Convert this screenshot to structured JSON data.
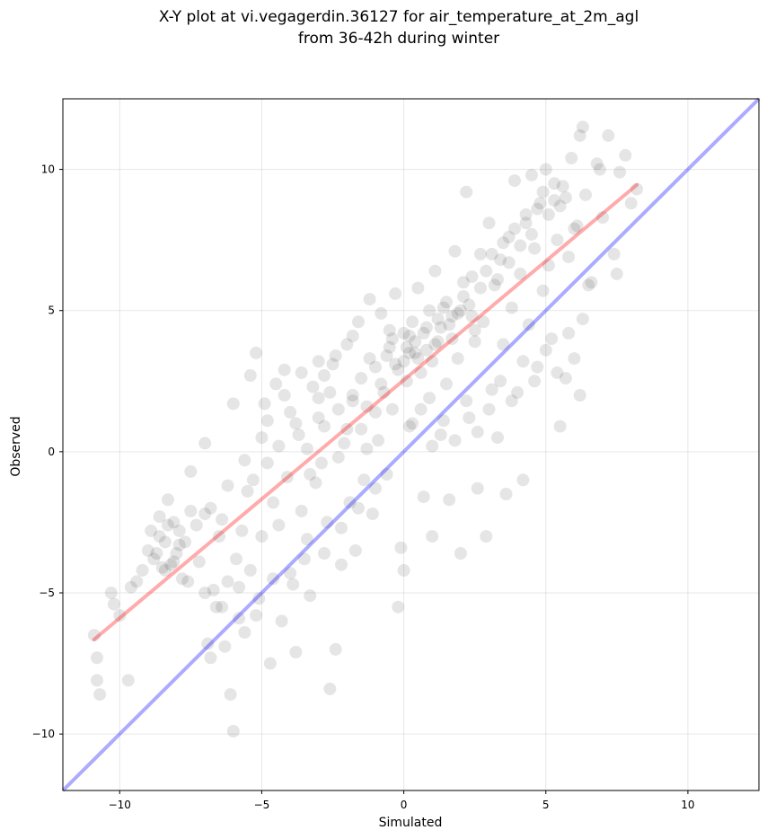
{
  "chart_data": {
    "type": "scatter",
    "title_line1": "X-Y plot at vi.vegagerdin.36127 for air_temperature_at_2m_agl",
    "title_line2": "from 36-42h during winter",
    "xlabel": "Simulated",
    "ylabel": "Observed",
    "xlim": [
      -12,
      12.5
    ],
    "ylim": [
      -12,
      12.5
    ],
    "xticks": [
      -10,
      -5,
      0,
      5,
      10
    ],
    "yticks": [
      -10,
      -5,
      0,
      5,
      10
    ],
    "xtick_labels": [
      "−10",
      "−5",
      "0",
      "5",
      "10"
    ],
    "ytick_labels": [
      "−10",
      "−5",
      "0",
      "5",
      "10"
    ],
    "grid": true,
    "point_color": "#000000",
    "point_opacity": 0.1,
    "identity_line": {
      "color": "#0000ff",
      "opacity": 0.33,
      "x": [
        -12,
        12.5
      ],
      "y": [
        -12,
        12.5
      ]
    },
    "fit_line": {
      "color": "#ff0000",
      "opacity": 0.33,
      "x": [
        -10.9,
        8.2
      ],
      "y": [
        -6.65,
        9.45
      ]
    },
    "points": [
      [
        -10.9,
        -6.5
      ],
      [
        -10.8,
        -7.3
      ],
      [
        -10.8,
        -8.1
      ],
      [
        -10.7,
        -8.6
      ],
      [
        -10.3,
        -5.0
      ],
      [
        -10.2,
        -5.4
      ],
      [
        -10.0,
        -5.8
      ],
      [
        -9.7,
        -8.1
      ],
      [
        -9.6,
        -4.8
      ],
      [
        -9.4,
        -4.6
      ],
      [
        -9.2,
        -4.2
      ],
      [
        -9.0,
        -3.5
      ],
      [
        -8.9,
        -2.8
      ],
      [
        -8.8,
        -3.8
      ],
      [
        -8.6,
        -2.3
      ],
      [
        -8.5,
        -4.1
      ],
      [
        -8.4,
        -3.2
      ],
      [
        -8.2,
        -4.0
      ],
      [
        -8.1,
        -2.5
      ],
      [
        -8.0,
        -3.6
      ],
      [
        -7.9,
        -2.8
      ],
      [
        -7.8,
        -4.5
      ],
      [
        -7.7,
        -3.2
      ],
      [
        -7.5,
        -2.1
      ],
      [
        -7.3,
        -2.6
      ],
      [
        -7.2,
        -3.9
      ],
      [
        -7.0,
        -2.2
      ],
      [
        -6.9,
        -6.8
      ],
      [
        -6.8,
        -7.3
      ],
      [
        -6.7,
        -4.9
      ],
      [
        -6.6,
        -5.5
      ],
      [
        -6.5,
        -3.0
      ],
      [
        -6.4,
        -2.4
      ],
      [
        -6.3,
        -6.9
      ],
      [
        -6.2,
        -4.6
      ],
      [
        -6.1,
        -8.6
      ],
      [
        -6.0,
        -9.9
      ],
      [
        -5.9,
        -3.8
      ],
      [
        -5.8,
        -5.9
      ],
      [
        -5.7,
        -2.8
      ],
      [
        -5.6,
        -6.4
      ],
      [
        -5.5,
        -1.4
      ],
      [
        -5.4,
        -4.2
      ],
      [
        -5.3,
        -1.0
      ],
      [
        -5.2,
        3.5
      ],
      [
        -5.1,
        -5.2
      ],
      [
        -5.0,
        -3.0
      ],
      [
        -4.9,
        1.7
      ],
      [
        -4.8,
        -0.4
      ],
      [
        -4.7,
        -7.5
      ],
      [
        -4.6,
        -1.8
      ],
      [
        -4.5,
        2.4
      ],
      [
        -4.4,
        -2.6
      ],
      [
        -4.3,
        -6.0
      ],
      [
        -4.2,
        2.9
      ],
      [
        -4.1,
        -0.9
      ],
      [
        -4.0,
        1.4
      ],
      [
        -3.9,
        -4.7
      ],
      [
        -3.8,
        -7.1
      ],
      [
        -3.7,
        0.6
      ],
      [
        -3.6,
        -2.1
      ],
      [
        -3.5,
        -3.8
      ],
      [
        -3.4,
        0.1
      ],
      [
        -3.3,
        -5.1
      ],
      [
        -3.2,
        2.3
      ],
      [
        -3.1,
        -1.1
      ],
      [
        -3.0,
        1.2
      ],
      [
        -2.9,
        -0.4
      ],
      [
        -2.8,
        2.7
      ],
      [
        -2.7,
        -2.5
      ],
      [
        -2.6,
        -8.4
      ],
      [
        -2.5,
        3.1
      ],
      [
        -2.4,
        -7.0
      ],
      [
        -2.3,
        1.5
      ],
      [
        -2.2,
        -4.0
      ],
      [
        -2.1,
        0.3
      ],
      [
        -2.0,
        3.8
      ],
      [
        -1.9,
        -1.8
      ],
      [
        -1.8,
        2.0
      ],
      [
        -1.7,
        -3.5
      ],
      [
        -1.6,
        4.6
      ],
      [
        -1.5,
        0.8
      ],
      [
        -1.4,
        -1.0
      ],
      [
        -1.3,
        1.6
      ],
      [
        -1.2,
        5.4
      ],
      [
        -1.1,
        -2.2
      ],
      [
        -1.0,
        3.0
      ],
      [
        -0.9,
        0.4
      ],
      [
        -0.8,
        4.9
      ],
      [
        -0.7,
        2.1
      ],
      [
        -0.6,
        -0.8
      ],
      [
        -0.5,
        3.7
      ],
      [
        -0.4,
        1.5
      ],
      [
        -0.3,
        5.6
      ],
      [
        -0.2,
        -5.5
      ],
      [
        -0.1,
        -3.4
      ],
      [
        0.0,
        3.2
      ],
      [
        0.0,
        -4.2
      ],
      [
        0.1,
        2.5
      ],
      [
        0.2,
        4.1
      ],
      [
        0.3,
        1.0
      ],
      [
        0.4,
        3.5
      ],
      [
        0.5,
        5.8
      ],
      [
        0.6,
        2.8
      ],
      [
        0.7,
        -1.6
      ],
      [
        0.8,
        4.4
      ],
      [
        0.9,
        1.9
      ],
      [
        1.0,
        -3.0
      ],
      [
        1.1,
        6.4
      ],
      [
        1.2,
        3.9
      ],
      [
        1.3,
        0.6
      ],
      [
        1.4,
        5.1
      ],
      [
        1.5,
        2.4
      ],
      [
        1.6,
        -1.7
      ],
      [
        1.7,
        4.8
      ],
      [
        1.8,
        7.1
      ],
      [
        1.9,
        3.3
      ],
      [
        2.0,
        -3.6
      ],
      [
        2.1,
        5.5
      ],
      [
        2.2,
        9.2
      ],
      [
        2.3,
        1.2
      ],
      [
        2.4,
        6.2
      ],
      [
        2.5,
        3.9
      ],
      [
        2.6,
        -1.3
      ],
      [
        2.7,
        7.0
      ],
      [
        2.8,
        4.6
      ],
      [
        2.9,
        -3.0
      ],
      [
        3.0,
        8.1
      ],
      [
        3.1,
        2.2
      ],
      [
        3.2,
        5.9
      ],
      [
        3.3,
        0.5
      ],
      [
        3.4,
        6.8
      ],
      [
        3.5,
        3.8
      ],
      [
        3.6,
        -1.5
      ],
      [
        3.7,
        7.6
      ],
      [
        3.8,
        5.1
      ],
      [
        3.9,
        9.6
      ],
      [
        4.0,
        2.1
      ],
      [
        4.1,
        6.3
      ],
      [
        4.2,
        -1.0
      ],
      [
        4.3,
        8.4
      ],
      [
        4.4,
        4.5
      ],
      [
        4.5,
        9.8
      ],
      [
        4.6,
        7.2
      ],
      [
        4.7,
        3.0
      ],
      [
        4.8,
        8.8
      ],
      [
        4.9,
        5.7
      ],
      [
        5.0,
        10.0
      ],
      [
        5.1,
        6.6
      ],
      [
        5.2,
        4.0
      ],
      [
        5.3,
        8.9
      ],
      [
        5.4,
        7.5
      ],
      [
        5.5,
        0.9
      ],
      [
        5.6,
        9.4
      ],
      [
        5.7,
        2.6
      ],
      [
        5.8,
        6.9
      ],
      [
        5.9,
        10.4
      ],
      [
        6.0,
        3.3
      ],
      [
        6.1,
        8.0
      ],
      [
        6.2,
        11.2
      ],
      [
        6.3,
        4.7
      ],
      [
        6.4,
        9.1
      ],
      [
        6.6,
        6.0
      ],
      [
        6.8,
        10.2
      ],
      [
        7.0,
        8.3
      ],
      [
        7.2,
        11.2
      ],
      [
        7.4,
        7.0
      ],
      [
        7.6,
        9.9
      ],
      [
        7.8,
        10.5
      ],
      [
        8.0,
        8.8
      ],
      [
        8.2,
        9.3
      ],
      [
        6.3,
        11.5
      ],
      [
        6.9,
        10.0
      ],
      [
        7.5,
        6.3
      ],
      [
        -3.0,
        3.2
      ],
      [
        -2.6,
        2.1
      ],
      [
        -2.0,
        0.8
      ],
      [
        -1.5,
        2.6
      ],
      [
        -1.0,
        1.4
      ],
      [
        -0.5,
        4.3
      ],
      [
        -0.3,
        3.1
      ],
      [
        0.1,
        3.7
      ],
      [
        0.3,
        4.6
      ],
      [
        0.5,
        3.3
      ],
      [
        0.7,
        4.2
      ],
      [
        0.9,
        5.0
      ],
      [
        1.1,
        3.8
      ],
      [
        1.3,
        4.4
      ],
      [
        1.5,
        5.3
      ],
      [
        1.7,
        4.0
      ],
      [
        1.9,
        4.9
      ],
      [
        2.1,
        6.0
      ],
      [
        2.3,
        5.2
      ],
      [
        2.5,
        4.3
      ],
      [
        2.7,
        5.8
      ],
      [
        2.9,
        6.4
      ],
      [
        3.1,
        7.0
      ],
      [
        3.3,
        6.1
      ],
      [
        3.5,
        7.4
      ],
      [
        3.7,
        6.7
      ],
      [
        3.9,
        7.9
      ],
      [
        4.1,
        7.3
      ],
      [
        4.3,
        8.1
      ],
      [
        4.5,
        7.7
      ],
      [
        4.7,
        8.6
      ],
      [
        4.9,
        9.2
      ],
      [
        5.1,
        8.4
      ],
      [
        5.3,
        9.5
      ],
      [
        5.5,
        8.7
      ],
      [
        5.7,
        9.0
      ],
      [
        -6.8,
        -2.0
      ],
      [
        -6.2,
        -1.2
      ],
      [
        -5.6,
        -0.3
      ],
      [
        -5.0,
        0.5
      ],
      [
        -4.4,
        0.2
      ],
      [
        -3.8,
        1.0
      ],
      [
        -3.3,
        -0.8
      ],
      [
        -2.8,
        0.9
      ],
      [
        -2.3,
        -0.2
      ],
      [
        -1.8,
        1.8
      ],
      [
        -1.3,
        0.1
      ],
      [
        -0.8,
        2.4
      ],
      [
        -7.6,
        -4.6
      ],
      [
        -7.0,
        -5.0
      ],
      [
        -6.4,
        -5.5
      ],
      [
        -5.8,
        -4.8
      ],
      [
        -5.2,
        -5.8
      ],
      [
        -4.6,
        -4.5
      ],
      [
        -4.0,
        -4.3
      ],
      [
        -3.4,
        -3.1
      ],
      [
        -2.8,
        -3.6
      ],
      [
        -2.2,
        -2.7
      ],
      [
        -1.6,
        -2.0
      ],
      [
        -1.0,
        -1.3
      ],
      [
        -8.3,
        -1.7
      ],
      [
        -7.5,
        -0.7
      ],
      [
        -7.0,
        0.3
      ],
      [
        -6.0,
        1.7
      ],
      [
        -5.4,
        2.7
      ],
      [
        -4.8,
        1.1
      ],
      [
        -4.2,
        2.0
      ],
      [
        -3.6,
        2.8
      ],
      [
        -3.0,
        1.9
      ],
      [
        -2.4,
        3.4
      ],
      [
        -1.8,
        4.1
      ],
      [
        -1.2,
        3.3
      ],
      [
        0.2,
        0.9
      ],
      [
        0.6,
        1.5
      ],
      [
        1.0,
        0.2
      ],
      [
        1.4,
        1.1
      ],
      [
        1.8,
        0.4
      ],
      [
        2.2,
        1.8
      ],
      [
        2.6,
        0.7
      ],
      [
        3.0,
        1.5
      ],
      [
        3.4,
        2.5
      ],
      [
        3.8,
        1.8
      ],
      [
        4.2,
        3.2
      ],
      [
        4.6,
        2.5
      ],
      [
        5.0,
        3.6
      ],
      [
        5.4,
        2.8
      ],
      [
        5.8,
        4.2
      ],
      [
        6.2,
        2.0
      ],
      [
        6.5,
        5.9
      ],
      [
        6.0,
        7.9
      ],
      [
        -0.6,
        3.4
      ],
      [
        -0.2,
        2.9
      ],
      [
        0.0,
        4.2
      ],
      [
        0.4,
        3.9
      ],
      [
        0.8,
        3.6
      ],
      [
        1.2,
        4.7
      ],
      [
        1.6,
        4.5
      ],
      [
        2.0,
        5.0
      ],
      [
        2.4,
        4.8
      ],
      [
        1.0,
        3.2
      ],
      [
        0.2,
        3.5
      ],
      [
        -0.4,
        4.0
      ],
      [
        -8.7,
        -3.6
      ],
      [
        -8.4,
        -4.2
      ],
      [
        -8.1,
        -3.9
      ],
      [
        -7.9,
        -3.3
      ],
      [
        -8.6,
        -3.0
      ],
      [
        -8.3,
        -2.6
      ]
    ]
  }
}
